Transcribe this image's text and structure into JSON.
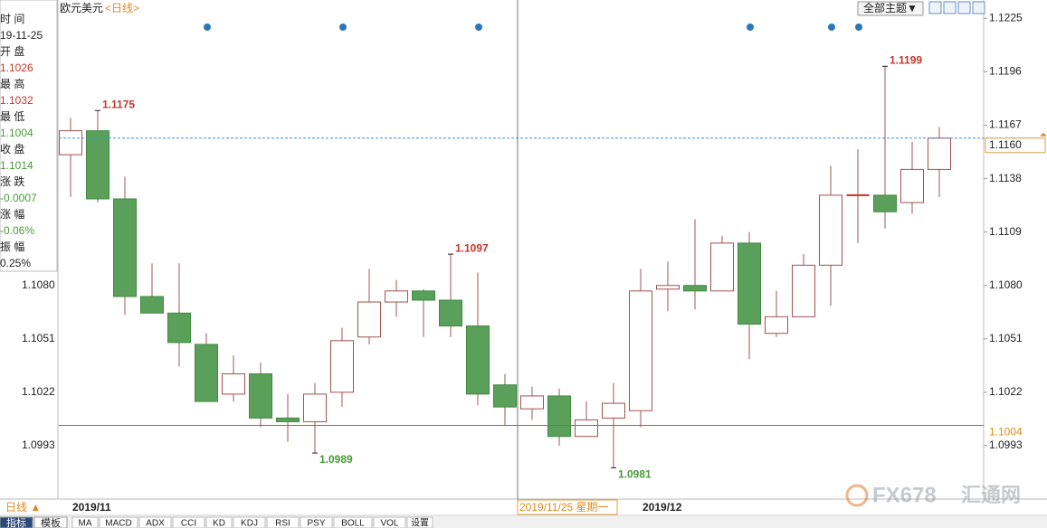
{
  "chart_data": {
    "type": "candlestick",
    "title": "欧元美元",
    "subtitle": "<日线>",
    "categories": [
      "2019/11",
      null,
      null,
      null,
      null,
      null,
      null,
      null,
      null,
      null,
      null,
      null,
      null,
      null,
      null,
      null,
      null,
      null,
      null,
      null,
      null,
      "2019/12",
      null,
      null,
      null,
      null,
      null,
      null,
      null,
      null,
      null,
      null,
      null
    ],
    "open": [
      1.1151,
      1.1164,
      1.1127,
      1.1074,
      1.1065,
      1.1048,
      1.1021,
      1.1032,
      1.1008,
      1.1006,
      1.1022,
      1.1052,
      1.1071,
      1.1077,
      1.1072,
      1.1058,
      1.1026,
      1.1013,
      1.102,
      1.0998,
      1.1008,
      1.1012,
      1.1078,
      1.108,
      1.1077,
      1.1103,
      1.1054,
      1.1063,
      1.1091,
      1.1129,
      1.1129,
      1.1125,
      1.1143
    ],
    "high": [
      1.1171,
      1.1175,
      1.1139,
      1.1092,
      1.1092,
      1.1054,
      1.1042,
      1.1038,
      1.1021,
      1.1027,
      1.1057,
      1.1089,
      1.1083,
      1.1078,
      1.1097,
      1.1087,
      1.1032,
      1.1025,
      1.1024,
      1.1017,
      1.1027,
      1.1089,
      1.1093,
      1.1116,
      1.1107,
      1.1109,
      1.1077,
      1.1097,
      1.1145,
      1.1154,
      1.1199,
      1.1158,
      1.1166
    ],
    "low": [
      1.1128,
      1.1125,
      1.1064,
      1.1065,
      1.1036,
      1.1017,
      1.1017,
      1.1003,
      1.0995,
      1.0989,
      1.1014,
      1.1048,
      1.1063,
      1.1052,
      1.1052,
      1.1015,
      1.1004,
      1.1007,
      1.0993,
      1.0998,
      1.0981,
      1.1003,
      1.1066,
      1.1067,
      1.1077,
      1.104,
      1.1052,
      1.1063,
      1.1069,
      1.1103,
      1.1111,
      1.1119,
      1.1128
    ],
    "close": [
      1.1164,
      1.1127,
      1.1074,
      1.1065,
      1.1049,
      1.1017,
      1.1032,
      1.1008,
      1.1006,
      1.1021,
      1.105,
      1.1071,
      1.1077,
      1.1072,
      1.1058,
      1.1021,
      1.1014,
      1.102,
      1.0998,
      1.1007,
      1.1016,
      1.1077,
      1.108,
      1.1077,
      1.1103,
      1.1059,
      1.1063,
      1.1091,
      1.1129,
      1.1129,
      1.112,
      1.1143,
      1.116
    ],
    "ylim": [
      1.0964,
      1.1235
    ],
    "yticks": [
      1.1225,
      1.1196,
      1.1167,
      1.1138,
      1.1109,
      {
        "value": 1.108,
        "label": "1.1080"
      },
      1.1051,
      1.1022,
      1.0993
    ],
    "colors": {
      "up": "#a0524d",
      "down": "#5aa05a",
      "down_edge": "#3f8a3f",
      "wick": "#9a5a55",
      "doji": "#c0392b",
      "high_label": "#c0392b",
      "low_label": "#4a9a3a"
    },
    "last_price": {
      "value": 1.116,
      "label": "1.1160"
    },
    "crosshair": {
      "x_label": "2019/11/25 星期一",
      "y": {
        "value": 1.1004,
        "label": "1.1004"
      }
    }
  },
  "info_panel": [
    {
      "label": "时 间",
      "value": "19-11-25"
    },
    {
      "label": "开 盘",
      "value": "1.1026"
    },
    {
      "label": "最 高",
      "value": "1.1032"
    },
    {
      "label": "最 低",
      "value": "1.1004"
    },
    {
      "label": "收 盘",
      "value": "1.1014"
    },
    {
      "label": "涨 跌",
      "value": "-0.0007"
    },
    {
      "label": "涨 幅",
      "value": "-0.06%"
    },
    {
      "label": "振 幅",
      "value": "0.25%"
    }
  ],
  "controls": {
    "theme_button": "全部主题▼"
  },
  "toolbar": {
    "period": "日线 ▲",
    "tabs": [
      "指标",
      "模板"
    ],
    "indicators": [
      "MA",
      "MACD",
      "ADX",
      "CCI",
      "KD",
      "KDJ",
      "RSI",
      "PSY",
      "BOLL",
      "VOL",
      "设置"
    ]
  },
  "watermark": [
    "FX678",
    "汇通网"
  ]
}
